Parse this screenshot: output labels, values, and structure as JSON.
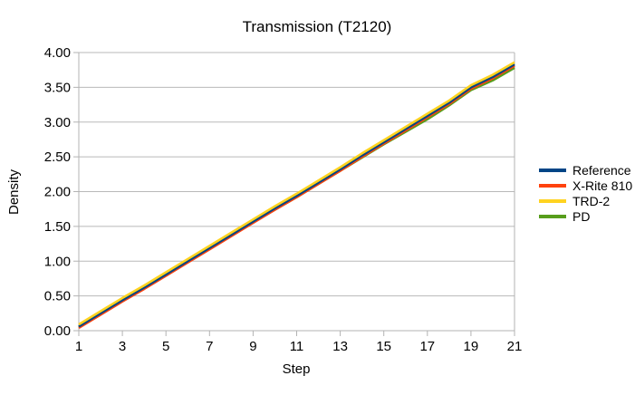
{
  "chart_data": {
    "type": "line",
    "title": "Transmission (T2120)",
    "xlabel": "Step",
    "ylabel": "Density",
    "x": [
      1,
      2,
      3,
      4,
      5,
      6,
      7,
      8,
      9,
      10,
      11,
      12,
      13,
      14,
      15,
      16,
      17,
      18,
      19,
      20,
      21
    ],
    "xticks": [
      1,
      3,
      5,
      7,
      9,
      11,
      13,
      15,
      17,
      19,
      21
    ],
    "ylim": [
      0,
      4
    ],
    "ytick_step": 0.5,
    "ytick_decimals": 2,
    "grid": "horizontal",
    "legend_position": "right",
    "colors": {
      "grid": "#b9b9b9",
      "axis": "#b3b3b3",
      "text": "#000000",
      "background": "#ffffff"
    },
    "series": [
      {
        "name": "Reference",
        "color": "#004586",
        "values": [
          0.06,
          0.25,
          0.44,
          0.62,
          0.81,
          1.0,
          1.19,
          1.38,
          1.57,
          1.76,
          1.94,
          2.13,
          2.32,
          2.52,
          2.71,
          2.9,
          3.09,
          3.28,
          3.5,
          3.65,
          3.83
        ]
      },
      {
        "name": "X-Rite 810",
        "color": "#FF420E",
        "values": [
          0.04,
          0.23,
          0.42,
          0.6,
          0.79,
          0.98,
          1.17,
          1.36,
          1.55,
          1.74,
          1.92,
          2.11,
          2.3,
          2.5,
          2.69,
          2.88,
          3.07,
          3.26,
          3.48,
          3.63,
          3.81
        ]
      },
      {
        "name": "TRD-2",
        "color": "#FFD320",
        "values": [
          0.09,
          0.28,
          0.47,
          0.65,
          0.84,
          1.03,
          1.22,
          1.41,
          1.6,
          1.79,
          1.97,
          2.16,
          2.35,
          2.55,
          2.74,
          2.93,
          3.12,
          3.31,
          3.53,
          3.68,
          3.86
        ]
      },
      {
        "name": "PD",
        "color": "#579D1C",
        "values": [
          0.05,
          0.24,
          0.43,
          0.61,
          0.8,
          0.99,
          1.18,
          1.37,
          1.56,
          1.74,
          1.92,
          2.11,
          2.3,
          2.49,
          2.68,
          2.86,
          3.04,
          3.24,
          3.46,
          3.6,
          3.78
        ]
      }
    ]
  }
}
